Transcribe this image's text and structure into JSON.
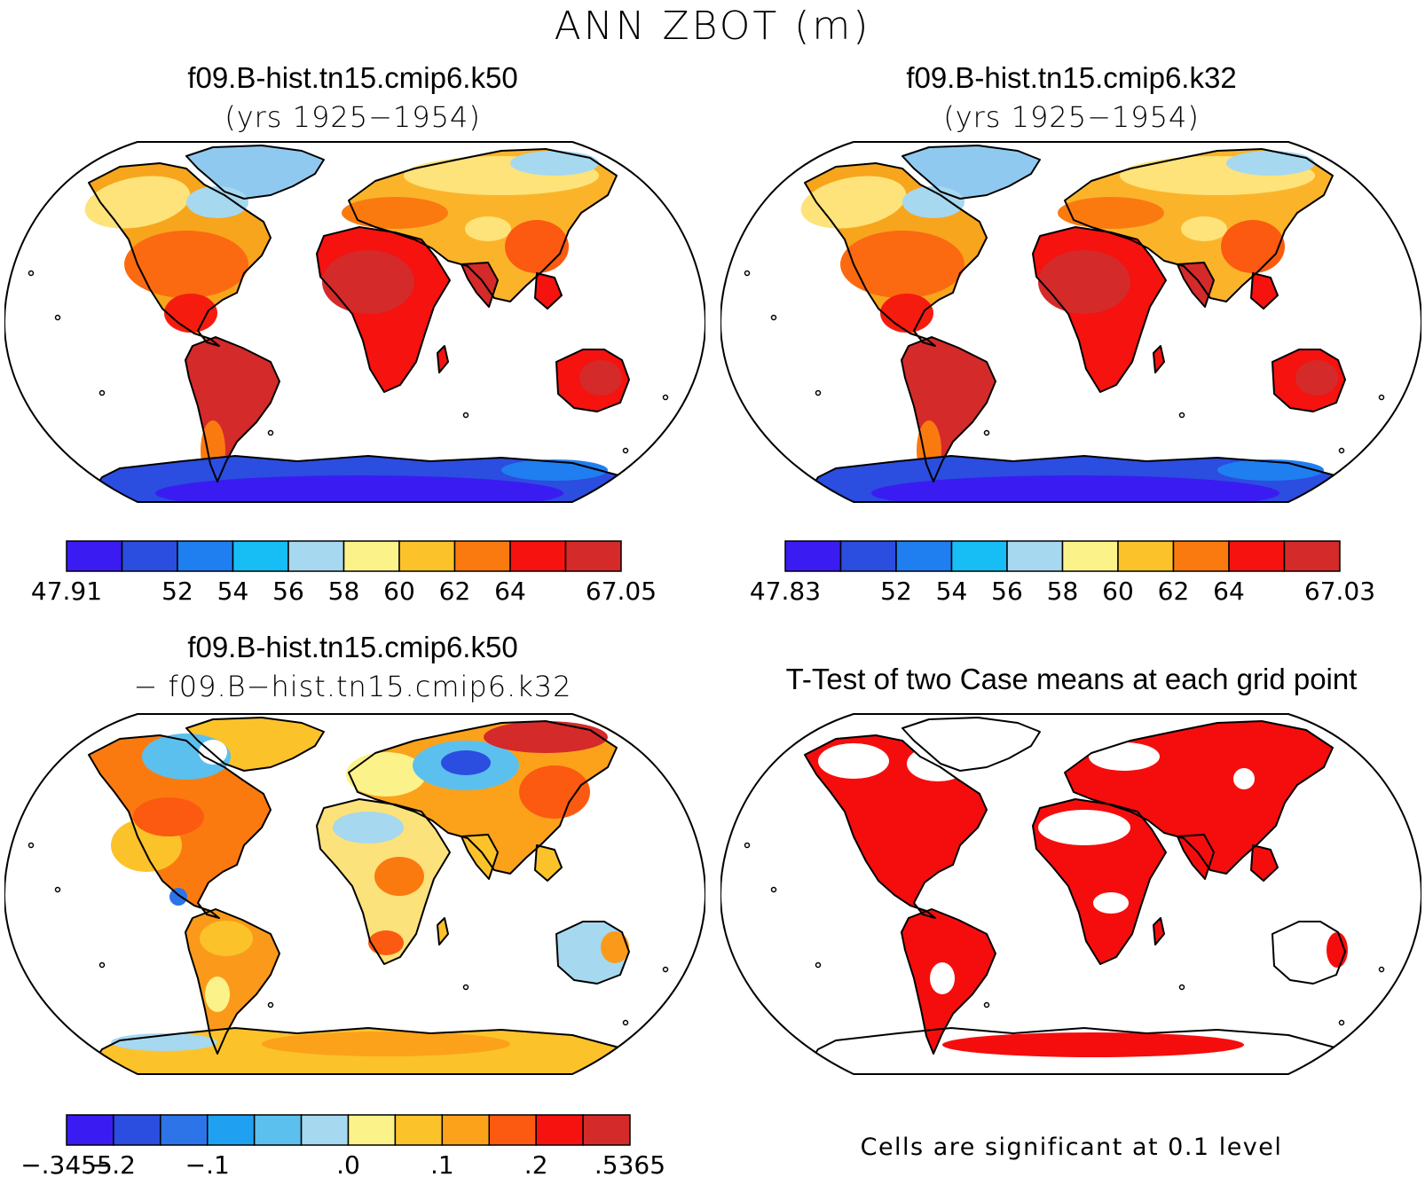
{
  "title": "ANN ZBOT (m)",
  "panels": [
    {
      "title": "f09.B-hist.tn15.cmip6.k50",
      "subtitle": "(yrs 1925−1954)",
      "colorbar": {
        "colors": [
          "#3a1cf2",
          "#2b4de0",
          "#1f7ef0",
          "#17bdf5",
          "#a6d8f0",
          "#fbf28a",
          "#fbc22a",
          "#fb7a10",
          "#f5120f",
          "#d42a2a"
        ],
        "labels": [
          "47.91",
          "",
          "52",
          "54",
          "56",
          "58",
          "60",
          "62",
          "64",
          "",
          "67.05"
        ]
      }
    },
    {
      "title": "f09.B-hist.tn15.cmip6.k32",
      "subtitle": "(yrs 1925−1954)",
      "colorbar": {
        "colors": [
          "#3a1cf2",
          "#2b4de0",
          "#1f7ef0",
          "#17bdf5",
          "#a6d8f0",
          "#fbf28a",
          "#fbc22a",
          "#fb7a10",
          "#f5120f",
          "#d42a2a"
        ],
        "labels": [
          "47.83",
          "",
          "52",
          "54",
          "56",
          "58",
          "60",
          "62",
          "64",
          "",
          "67.03"
        ]
      }
    },
    {
      "title": "f09.B-hist.tn15.cmip6.k50",
      "subtitle": "− f09.B−hist.tn15.cmip6.k32",
      "colorbar": {
        "colors": [
          "#3a1cf2",
          "#2b4de0",
          "#2d74e8",
          "#1fa0f0",
          "#5bc0ee",
          "#a6d8f0",
          "#fbf28a",
          "#fbc22a",
          "#fba21a",
          "#fb5a10",
          "#f5120f",
          "#d42a2a"
        ],
        "labels": [
          "−.3455",
          "−.2",
          "",
          "−.1",
          "",
          "",
          "–.0",
          "",
          "–.1",
          "",
          "–.2",
          "",
          "–.5365"
        ]
      }
    },
    {
      "title": "T-Test of two Case means at each grid point",
      "note": "Cells are significant at 0.1 level"
    }
  ]
}
